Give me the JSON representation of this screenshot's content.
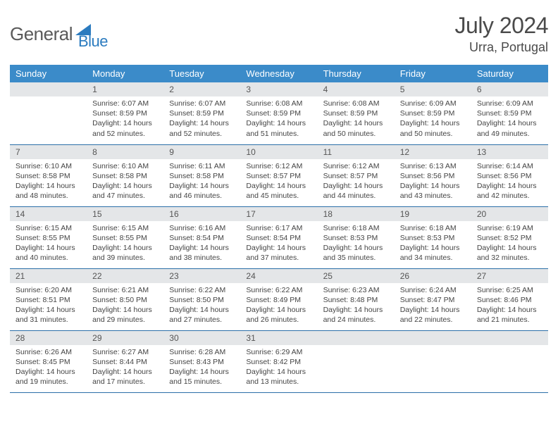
{
  "logo": {
    "general": "General",
    "blue": "Blue"
  },
  "title": {
    "month_year": "July 2024",
    "location": "Urra, Portugal"
  },
  "colors": {
    "header_bg": "#3b8bc9",
    "header_text": "#ffffff",
    "daynum_bg": "#e4e6e8",
    "body_text": "#444444",
    "rule": "#2b6fa8",
    "logo_gray": "#5a5a5a",
    "logo_blue": "#2b7bbf"
  },
  "weekdays": [
    "Sunday",
    "Monday",
    "Tuesday",
    "Wednesday",
    "Thursday",
    "Friday",
    "Saturday"
  ],
  "first_weekday_index": 1,
  "days": [
    {
      "n": "1",
      "sunrise": "6:07 AM",
      "sunset": "8:59 PM",
      "daylight": "14 hours and 52 minutes."
    },
    {
      "n": "2",
      "sunrise": "6:07 AM",
      "sunset": "8:59 PM",
      "daylight": "14 hours and 52 minutes."
    },
    {
      "n": "3",
      "sunrise": "6:08 AM",
      "sunset": "8:59 PM",
      "daylight": "14 hours and 51 minutes."
    },
    {
      "n": "4",
      "sunrise": "6:08 AM",
      "sunset": "8:59 PM",
      "daylight": "14 hours and 50 minutes."
    },
    {
      "n": "5",
      "sunrise": "6:09 AM",
      "sunset": "8:59 PM",
      "daylight": "14 hours and 50 minutes."
    },
    {
      "n": "6",
      "sunrise": "6:09 AM",
      "sunset": "8:59 PM",
      "daylight": "14 hours and 49 minutes."
    },
    {
      "n": "7",
      "sunrise": "6:10 AM",
      "sunset": "8:58 PM",
      "daylight": "14 hours and 48 minutes."
    },
    {
      "n": "8",
      "sunrise": "6:10 AM",
      "sunset": "8:58 PM",
      "daylight": "14 hours and 47 minutes."
    },
    {
      "n": "9",
      "sunrise": "6:11 AM",
      "sunset": "8:58 PM",
      "daylight": "14 hours and 46 minutes."
    },
    {
      "n": "10",
      "sunrise": "6:12 AM",
      "sunset": "8:57 PM",
      "daylight": "14 hours and 45 minutes."
    },
    {
      "n": "11",
      "sunrise": "6:12 AM",
      "sunset": "8:57 PM",
      "daylight": "14 hours and 44 minutes."
    },
    {
      "n": "12",
      "sunrise": "6:13 AM",
      "sunset": "8:56 PM",
      "daylight": "14 hours and 43 minutes."
    },
    {
      "n": "13",
      "sunrise": "6:14 AM",
      "sunset": "8:56 PM",
      "daylight": "14 hours and 42 minutes."
    },
    {
      "n": "14",
      "sunrise": "6:15 AM",
      "sunset": "8:55 PM",
      "daylight": "14 hours and 40 minutes."
    },
    {
      "n": "15",
      "sunrise": "6:15 AM",
      "sunset": "8:55 PM",
      "daylight": "14 hours and 39 minutes."
    },
    {
      "n": "16",
      "sunrise": "6:16 AM",
      "sunset": "8:54 PM",
      "daylight": "14 hours and 38 minutes."
    },
    {
      "n": "17",
      "sunrise": "6:17 AM",
      "sunset": "8:54 PM",
      "daylight": "14 hours and 37 minutes."
    },
    {
      "n": "18",
      "sunrise": "6:18 AM",
      "sunset": "8:53 PM",
      "daylight": "14 hours and 35 minutes."
    },
    {
      "n": "19",
      "sunrise": "6:18 AM",
      "sunset": "8:53 PM",
      "daylight": "14 hours and 34 minutes."
    },
    {
      "n": "20",
      "sunrise": "6:19 AM",
      "sunset": "8:52 PM",
      "daylight": "14 hours and 32 minutes."
    },
    {
      "n": "21",
      "sunrise": "6:20 AM",
      "sunset": "8:51 PM",
      "daylight": "14 hours and 31 minutes."
    },
    {
      "n": "22",
      "sunrise": "6:21 AM",
      "sunset": "8:50 PM",
      "daylight": "14 hours and 29 minutes."
    },
    {
      "n": "23",
      "sunrise": "6:22 AM",
      "sunset": "8:50 PM",
      "daylight": "14 hours and 27 minutes."
    },
    {
      "n": "24",
      "sunrise": "6:22 AM",
      "sunset": "8:49 PM",
      "daylight": "14 hours and 26 minutes."
    },
    {
      "n": "25",
      "sunrise": "6:23 AM",
      "sunset": "8:48 PM",
      "daylight": "14 hours and 24 minutes."
    },
    {
      "n": "26",
      "sunrise": "6:24 AM",
      "sunset": "8:47 PM",
      "daylight": "14 hours and 22 minutes."
    },
    {
      "n": "27",
      "sunrise": "6:25 AM",
      "sunset": "8:46 PM",
      "daylight": "14 hours and 21 minutes."
    },
    {
      "n": "28",
      "sunrise": "6:26 AM",
      "sunset": "8:45 PM",
      "daylight": "14 hours and 19 minutes."
    },
    {
      "n": "29",
      "sunrise": "6:27 AM",
      "sunset": "8:44 PM",
      "daylight": "14 hours and 17 minutes."
    },
    {
      "n": "30",
      "sunrise": "6:28 AM",
      "sunset": "8:43 PM",
      "daylight": "14 hours and 15 minutes."
    },
    {
      "n": "31",
      "sunrise": "6:29 AM",
      "sunset": "8:42 PM",
      "daylight": "14 hours and 13 minutes."
    }
  ],
  "labels": {
    "sunrise": "Sunrise:",
    "sunset": "Sunset:",
    "daylight": "Daylight:"
  }
}
